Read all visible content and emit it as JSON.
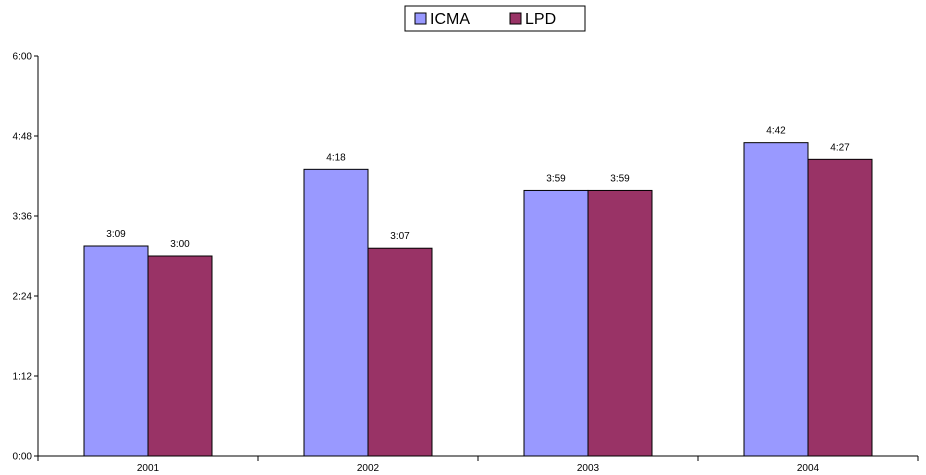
{
  "chart_data": {
    "type": "bar",
    "title": "",
    "xlabel": "",
    "ylabel": "",
    "categories": [
      "2001",
      "2002",
      "2003",
      "2004"
    ],
    "y_unit": "hours:minutes",
    "ylim": [
      "0:00",
      "6:00"
    ],
    "y_ticks": [
      "0:00",
      "1:12",
      "2:24",
      "3:36",
      "4:48",
      "6:00"
    ],
    "grid": false,
    "legend_position": "top",
    "series": [
      {
        "name": "ICMA",
        "color": "#9999ff",
        "values": [
          "3:09",
          "4:18",
          "3:59",
          "4:42"
        ]
      },
      {
        "name": "LPD",
        "color": "#993366",
        "values": [
          "3:00",
          "3:07",
          "3:59",
          "4:27"
        ]
      }
    ]
  }
}
